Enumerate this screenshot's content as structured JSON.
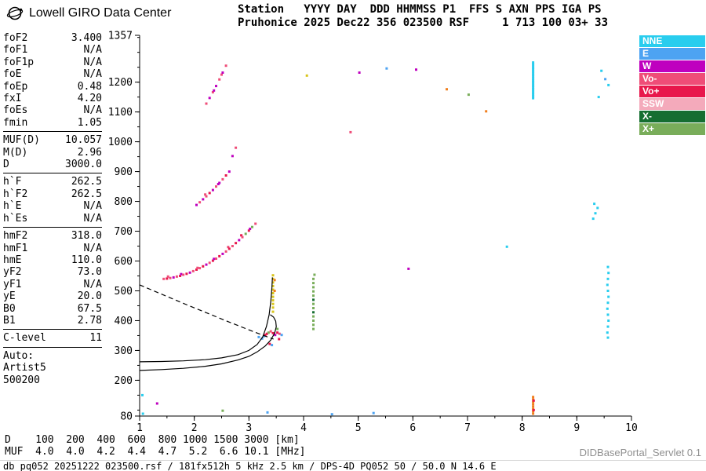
{
  "app": {
    "title": "Lowell GIRO Data Center",
    "servlet": "DIDBasePortal_Servlet 0.1",
    "status_line": "db pq052 20251222 023500.rsf / 181fx512h 5 kHz 2.5 km / DPS-4D PQ052 50 / 50.0 N 14.6 E"
  },
  "header": {
    "line1": "Station   YYYY DAY  DDD HHMMSS P1  FFS S AXN PPS IGA PS",
    "line2": "Pruhonice 2025 Dec22 356 023500 RSF     1 713 100 03+ 33"
  },
  "params": {
    "groups": [
      [
        [
          "foF2",
          "3.400"
        ],
        [
          "foF1",
          "N/A"
        ],
        [
          "foF1p",
          "N/A"
        ],
        [
          "foE",
          "N/A"
        ],
        [
          "foEp",
          "0.48"
        ],
        [
          "fxI",
          "4.20"
        ],
        [
          "foEs",
          "N/A"
        ],
        [
          "fmin",
          "1.05"
        ]
      ],
      [
        [
          "MUF(D)",
          "10.057"
        ],
        [
          "M(D)",
          "2.96"
        ],
        [
          "D",
          "3000.0"
        ]
      ],
      [
        [
          "h`F",
          "262.5"
        ],
        [
          "h`F2",
          "262.5"
        ],
        [
          "h`E",
          "N/A"
        ],
        [
          "h`Es",
          "N/A"
        ]
      ],
      [
        [
          "hmF2",
          "318.0"
        ],
        [
          "hmF1",
          "N/A"
        ],
        [
          "hmE",
          "110.0"
        ],
        [
          "yF2",
          "73.0"
        ],
        [
          "yF1",
          "N/A"
        ],
        [
          "yE",
          "20.0"
        ],
        [
          "B0",
          "67.5"
        ],
        [
          "B1",
          "2.78"
        ]
      ],
      [
        [
          "C-level",
          "11"
        ]
      ]
    ],
    "auto_lines": [
      "Auto:",
      "Artist5",
      "500200"
    ]
  },
  "legend": {
    "items": [
      [
        "NNE",
        "#29cdee"
      ],
      [
        "E",
        "#4da3f2"
      ],
      [
        "W",
        "#bf00bf"
      ],
      [
        "Vo-",
        "#ef4d78"
      ],
      [
        "Vo+",
        "#e8174c"
      ],
      [
        "SSW",
        "#f4aabb"
      ],
      [
        "X-",
        "#156e31"
      ],
      [
        "X+",
        "#79ad5a"
      ]
    ]
  },
  "footer": {
    "d_label": "D",
    "d_values": [
      "100",
      "200",
      "400",
      "600",
      "800",
      "1000",
      "1500",
      "3000"
    ],
    "d_unit": "[km]",
    "muf_label": "MUF",
    "muf_values": [
      "4.0",
      "4.0",
      "4.2",
      "4.4",
      "4.7",
      "5.2",
      "6.6",
      "10.1"
    ],
    "muf_unit": "[MHz]"
  },
  "chart_data": {
    "type": "scatter",
    "xlabel": "",
    "ylabel": "",
    "xlim": [
      1,
      10
    ],
    "ylim": [
      80,
      1357
    ],
    "x_ticks": [
      1,
      2,
      3,
      4,
      5,
      6,
      7,
      8,
      9,
      10
    ],
    "y_tick_labels": [
      80,
      200,
      300,
      400,
      500,
      600,
      700,
      800,
      900,
      1000,
      1100,
      1200,
      1357
    ],
    "legend_position": "top-right-outside",
    "grid": false,
    "palette": {
      "NNE": "#29cdee",
      "E": "#4da3f2",
      "W": "#bf00bf",
      "VoM": "#ef4d78",
      "VoP": "#e8174c",
      "SSW": "#f4aabb",
      "XM": "#156e31",
      "XP": "#79ad5a",
      "Y": "#d8c419",
      "O": "#f07f1e"
    },
    "points": [
      [
        1.44,
        540,
        "VoM"
      ],
      [
        1.5,
        541,
        "VoP"
      ],
      [
        1.52,
        548,
        "VoM"
      ],
      [
        1.56,
        543,
        "VoM"
      ],
      [
        1.62,
        545,
        "W"
      ],
      [
        1.68,
        548,
        "VoM"
      ],
      [
        1.74,
        550,
        "VoP"
      ],
      [
        1.76,
        556,
        "W"
      ],
      [
        1.8,
        554,
        "VoM"
      ],
      [
        1.86,
        557,
        "VoP"
      ],
      [
        1.92,
        561,
        "W"
      ],
      [
        1.98,
        566,
        "VoM"
      ],
      [
        2.04,
        571,
        "VoP"
      ],
      [
        2.06,
        577,
        "VoM"
      ],
      [
        2.1,
        576,
        "VoM"
      ],
      [
        2.16,
        582,
        "VoP"
      ],
      [
        2.22,
        588,
        "W"
      ],
      [
        2.28,
        594,
        "VoM"
      ],
      [
        2.34,
        601,
        "VoP"
      ],
      [
        2.36,
        607,
        "W"
      ],
      [
        2.4,
        608,
        "VoM"
      ],
      [
        2.46,
        616,
        "VoP"
      ],
      [
        2.52,
        624,
        "W"
      ],
      [
        2.58,
        632,
        "VoM"
      ],
      [
        2.62,
        647,
        "VoM"
      ],
      [
        2.64,
        641,
        "VoP"
      ],
      [
        2.7,
        650,
        "VoM"
      ],
      [
        2.76,
        660,
        "VoP"
      ],
      [
        2.82,
        670,
        "W"
      ],
      [
        2.86,
        686,
        "VoP"
      ],
      [
        2.88,
        680,
        "VoM"
      ],
      [
        2.94,
        691,
        "XP"
      ],
      [
        3.0,
        702,
        "VoP"
      ],
      [
        3.02,
        708,
        "W"
      ],
      [
        3.06,
        714,
        "XP"
      ],
      [
        3.12,
        725,
        "VoM"
      ],
      [
        2.04,
        788,
        "W"
      ],
      [
        2.1,
        797,
        "VoM"
      ],
      [
        2.16,
        807,
        "W"
      ],
      [
        2.2,
        823,
        "VoM"
      ],
      [
        2.22,
        817,
        "VoM"
      ],
      [
        2.28,
        828,
        "VoP"
      ],
      [
        2.34,
        838,
        "W"
      ],
      [
        2.4,
        850,
        "VoM"
      ],
      [
        2.44,
        858,
        "W"
      ],
      [
        2.46,
        862,
        "W"
      ],
      [
        2.52,
        874,
        "VoM"
      ],
      [
        2.58,
        887,
        "VoP"
      ],
      [
        2.64,
        900,
        "W"
      ],
      [
        2.22,
        1128,
        "VoM"
      ],
      [
        2.28,
        1147,
        "W"
      ],
      [
        2.34,
        1166,
        "VoM"
      ],
      [
        2.36,
        1172,
        "W"
      ],
      [
        2.4,
        1187,
        "W"
      ],
      [
        2.46,
        1209,
        "VoM"
      ],
      [
        2.5,
        1225,
        "VoM"
      ],
      [
        2.52,
        1232,
        "W"
      ],
      [
        2.58,
        1255,
        "VoM"
      ],
      [
        2.7,
        952,
        "W"
      ],
      [
        2.76,
        980,
        "VoM"
      ],
      [
        3.18,
        345,
        "E"
      ],
      [
        3.24,
        340,
        "E"
      ],
      [
        3.28,
        348,
        "E"
      ],
      [
        3.3,
        352,
        "VoP"
      ],
      [
        3.33,
        356,
        "VoP"
      ],
      [
        3.36,
        360,
        "XP"
      ],
      [
        3.38,
        322,
        "VoP"
      ],
      [
        3.4,
        364,
        "VoM"
      ],
      [
        3.42,
        318,
        "E"
      ],
      [
        3.44,
        358,
        "VoP"
      ],
      [
        3.48,
        352,
        "W"
      ],
      [
        3.52,
        360,
        "VoP"
      ],
      [
        3.52,
        372,
        "XP"
      ],
      [
        3.55,
        338,
        "VoP"
      ],
      [
        3.56,
        356,
        "VoM"
      ],
      [
        3.6,
        352,
        "E"
      ],
      [
        3.44,
        430,
        "Y"
      ],
      [
        3.44,
        444,
        "Y"
      ],
      [
        3.44,
        456,
        "Y"
      ],
      [
        3.44,
        468,
        "Y"
      ],
      [
        3.44,
        480,
        "Y"
      ],
      [
        3.44,
        492,
        "Y"
      ],
      [
        3.44,
        504,
        "Y"
      ],
      [
        3.44,
        516,
        "Y"
      ],
      [
        3.44,
        528,
        "Y"
      ],
      [
        3.44,
        540,
        "Y"
      ],
      [
        3.44,
        552,
        "Y"
      ],
      [
        3.47,
        500,
        "O"
      ],
      [
        3.47,
        536,
        "O"
      ],
      [
        4.18,
        372,
        "XP"
      ],
      [
        4.18,
        386,
        "XP"
      ],
      [
        4.18,
        400,
        "XP"
      ],
      [
        4.18,
        414,
        "XP"
      ],
      [
        4.18,
        428,
        "XM"
      ],
      [
        4.18,
        442,
        "XP"
      ],
      [
        4.18,
        456,
        "XP"
      ],
      [
        4.18,
        470,
        "XM"
      ],
      [
        4.18,
        484,
        "XP"
      ],
      [
        4.18,
        498,
        "XP"
      ],
      [
        4.18,
        512,
        "XP"
      ],
      [
        4.18,
        526,
        "XP"
      ],
      [
        4.18,
        540,
        "XP"
      ],
      [
        4.2,
        554,
        "XP"
      ],
      [
        8.2,
        1146,
        "NNE"
      ],
      [
        8.2,
        1152,
        "NNE"
      ],
      [
        8.2,
        1158,
        "NNE"
      ],
      [
        8.2,
        1164,
        "NNE"
      ],
      [
        8.2,
        1170,
        "NNE"
      ],
      [
        8.2,
        1176,
        "NNE"
      ],
      [
        8.2,
        1182,
        "NNE"
      ],
      [
        8.2,
        1188,
        "NNE"
      ],
      [
        8.2,
        1194,
        "NNE"
      ],
      [
        8.2,
        1200,
        "NNE"
      ],
      [
        8.2,
        1206,
        "NNE"
      ],
      [
        8.2,
        1212,
        "NNE"
      ],
      [
        8.2,
        1218,
        "NNE"
      ],
      [
        8.2,
        1224,
        "NNE"
      ],
      [
        8.2,
        1230,
        "NNE"
      ],
      [
        8.2,
        1236,
        "NNE"
      ],
      [
        8.2,
        1242,
        "NNE"
      ],
      [
        8.2,
        1248,
        "NNE"
      ],
      [
        8.2,
        1254,
        "NNE"
      ],
      [
        8.2,
        1260,
        "NNE"
      ],
      [
        8.2,
        1266,
        "NNE"
      ],
      [
        8.2,
        88,
        "O"
      ],
      [
        8.2,
        96,
        "O"
      ],
      [
        8.2,
        104,
        "O"
      ],
      [
        8.2,
        112,
        "O"
      ],
      [
        8.2,
        120,
        "O"
      ],
      [
        8.2,
        128,
        "O"
      ],
      [
        8.2,
        136,
        "O"
      ],
      [
        8.2,
        144,
        "O"
      ],
      [
        8.21,
        100,
        "VoP"
      ],
      [
        8.21,
        132,
        "VoP"
      ],
      [
        9.57,
        343,
        "NNE"
      ],
      [
        9.56,
        360,
        "NNE"
      ],
      [
        9.57,
        380,
        "NNE"
      ],
      [
        9.58,
        400,
        "NNE"
      ],
      [
        9.57,
        420,
        "NNE"
      ],
      [
        9.56,
        440,
        "NNE"
      ],
      [
        9.57,
        460,
        "NNE"
      ],
      [
        9.58,
        480,
        "NNE"
      ],
      [
        9.57,
        500,
        "NNE"
      ],
      [
        9.56,
        520,
        "NNE"
      ],
      [
        9.57,
        540,
        "NNE"
      ],
      [
        9.58,
        560,
        "NNE"
      ],
      [
        9.57,
        580,
        "NNE"
      ],
      [
        9.3,
        742,
        "NNE"
      ],
      [
        9.34,
        760,
        "NNE"
      ],
      [
        9.38,
        778,
        "NNE"
      ],
      [
        9.32,
        792,
        "NNE"
      ],
      [
        9.45,
        1238,
        "NNE"
      ],
      [
        9.52,
        1210,
        "E"
      ],
      [
        9.58,
        1190,
        "NNE"
      ],
      [
        9.4,
        1150,
        "NNE"
      ],
      [
        1.05,
        150,
        "NNE"
      ],
      [
        1.06,
        88,
        "NNE"
      ],
      [
        1.32,
        122,
        "W"
      ],
      [
        2.52,
        98,
        "XP"
      ],
      [
        3.34,
        92,
        "E"
      ],
      [
        4.52,
        86,
        "E"
      ],
      [
        5.28,
        90,
        "E"
      ],
      [
        4.06,
        1222,
        "Y"
      ],
      [
        5.02,
        1232,
        "W"
      ],
      [
        5.52,
        1246,
        "E"
      ],
      [
        6.06,
        1242,
        "W"
      ],
      [
        6.62,
        1176,
        "O"
      ],
      [
        7.02,
        1158,
        "XP"
      ],
      [
        7.34,
        1102,
        "O"
      ],
      [
        7.72,
        648,
        "NNE"
      ],
      [
        5.92,
        574,
        "W"
      ],
      [
        4.86,
        1032,
        "VoM"
      ]
    ],
    "curves": [
      {
        "style": "solid",
        "points": [
          [
            1.0,
            262
          ],
          [
            1.4,
            263
          ],
          [
            1.8,
            265
          ],
          [
            2.2,
            269
          ],
          [
            2.5,
            275
          ],
          [
            2.8,
            286
          ],
          [
            3.0,
            300
          ],
          [
            3.15,
            320
          ],
          [
            3.25,
            345
          ],
          [
            3.32,
            380
          ],
          [
            3.37,
            420
          ],
          [
            3.4,
            465
          ],
          [
            3.42,
            510
          ],
          [
            3.43,
            545
          ]
        ]
      },
      {
        "style": "solid",
        "points": [
          [
            1.0,
            233
          ],
          [
            1.4,
            236
          ],
          [
            1.8,
            240
          ],
          [
            2.2,
            247
          ],
          [
            2.5,
            255
          ],
          [
            2.8,
            268
          ],
          [
            3.0,
            280
          ],
          [
            3.15,
            295
          ],
          [
            3.3,
            315
          ],
          [
            3.4,
            335
          ],
          [
            3.47,
            358
          ],
          [
            3.5,
            380
          ],
          [
            3.49,
            398
          ],
          [
            3.45,
            412
          ],
          [
            3.39,
            420
          ]
        ]
      },
      {
        "style": "dashed",
        "points": [
          [
            1.0,
            520
          ],
          [
            1.4,
            489
          ],
          [
            1.8,
            458
          ],
          [
            2.2,
            428
          ],
          [
            2.6,
            398
          ],
          [
            3.0,
            369
          ],
          [
            3.2,
            355
          ],
          [
            3.35,
            345
          ],
          [
            3.45,
            338
          ]
        ]
      }
    ]
  }
}
